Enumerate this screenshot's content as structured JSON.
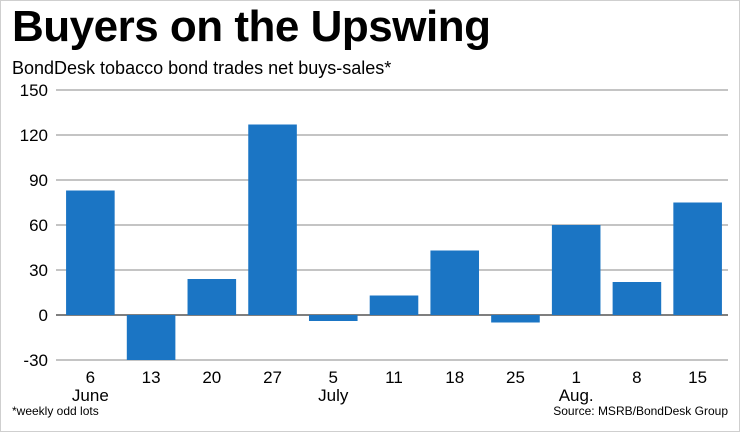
{
  "chart_data": {
    "type": "bar",
    "title": "Buyers on the Upswing",
    "subtitle": "BondDesk tobacco bond trades net buys-sales*",
    "categories": [
      "6",
      "13",
      "20",
      "27",
      "5",
      "11",
      "18",
      "25",
      "1",
      "8",
      "15"
    ],
    "month_labels": [
      {
        "index": 0,
        "label": "June"
      },
      {
        "index": 4,
        "label": "July"
      },
      {
        "index": 8,
        "label": "Aug."
      }
    ],
    "values": [
      83,
      -30,
      24,
      127,
      -4,
      13,
      43,
      -5,
      60,
      22,
      75
    ],
    "ylim": [
      -30,
      150
    ],
    "yticks": [
      150,
      120,
      90,
      60,
      30,
      0,
      -30
    ],
    "grid": true,
    "bar_color": "#1b75c4",
    "footnote": "*weekly odd lots",
    "source": "Source: MSRB/BondDesk Group"
  }
}
